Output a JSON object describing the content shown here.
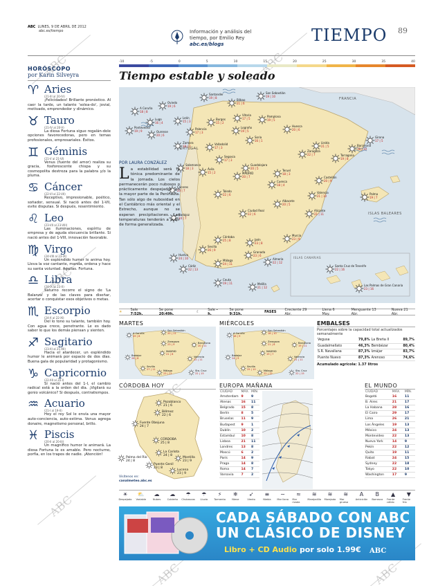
{
  "header": {
    "paper": "ABC",
    "date": "LUNES, 9 DE ABRIL DE 2012",
    "site": "abc.es/tiempo",
    "info_line1": "Información y análisis del",
    "info_line2": "tiempo, por Emilio Rey",
    "blog": "abc.es/blogs",
    "section": "TIEMPO",
    "page": "89"
  },
  "watermark": "ABC",
  "horoscope": {
    "title": "HORÓSCOPO",
    "author": "por Karin Silveyra",
    "signs": [
      {
        "name": "Aries",
        "symbol": "♈",
        "dates": "(21-III al 20-IV)",
        "text": "¡Felicidades! Brillante pronóstico. Al caer la tarde, un talante 'solea-do', jovial, motivado, emprendedor y dinámico."
      },
      {
        "name": "Tauro",
        "symbol": "♉",
        "dates": "(21-IV al 20-V)",
        "text": "La diosa Fortuna sigue regalán-dole opciones favorecedoras, pero en temas profesionales, empresariales. Éxitos."
      },
      {
        "name": "Géminis",
        "symbol": "♊",
        "dates": "(21-V al 21-VI)",
        "text": "Venus (fuente del amor) realiza su gracia, fosforescente chispa y su cosmopolita destreza para la palabra y/o la pluma."
      },
      {
        "name": "Cáncer",
        "symbol": "♋",
        "dates": "(22-VI al 22-VII)",
        "text": "Receptivo, impresionable, poético, soñador, sensual. Si nació antes del 1-VII, evite disputas. Si después, resentimiento."
      },
      {
        "name": "Leo",
        "symbol": "♌",
        "dates": "(23-VII al 23-VIII)",
        "text": "Las iluminaciones, espíritu de empresa y de aguda elocuencia brillante. Si nació antes del 1-VIII, innovación favorable."
      },
      {
        "name": "Virgo",
        "symbol": "♍",
        "dates": "(24-VIII al 23-IX)",
        "text": "Un espléndido humor le anima hoy. Lleva la voz cantante, manda, ordena y hace su santa voluntad. Agallas. Fortuna."
      },
      {
        "name": "Libra",
        "symbol": "♎",
        "dates": "(24-IX al 23-X)",
        "text": "Saturno recorre el signo de 'La Balanza' y de las claves para diseñar, acertar o conquistar esos objetivos o metas."
      },
      {
        "name": "Escorpio",
        "symbol": "♏",
        "dates": "(24-X al 22-XI)",
        "text": "Del lo tono su talante, también hoy. Con agua crece, penetrante. Le es dado saber lo que los demás piensan y sienten."
      },
      {
        "name": "Sagitario",
        "symbol": "♐",
        "dates": "(23-XI al 21-XII)",
        "text": "Hacia el atardecer, un espléndido humor le animará por espacio de dos días. Buena gala de popularidad y protagonismo."
      },
      {
        "name": "Capricornio",
        "symbol": "♑",
        "dates": "(22-XII al 20-I)",
        "text": "Si nació antes del 1-I, el cambio radical está a la orden del día. ¡Vigilará su genio volcánico? Si después, contratiempos."
      },
      {
        "name": "Acuario",
        "symbol": "♒",
        "dates": "(21-I al 19-II)",
        "text": "Hoy el rey Sol le envía una mayor auto-conciencia, auto-estima. Venus agrega donaire, magnetismo personal, brillo."
      },
      {
        "name": "Piscis",
        "symbol": "♓",
        "dates": "(20-II al 20-III)",
        "text": "Un magnífico humor le animará. La diosa Fortuna le es amable. Pero nocturno, porfía, en los trapos de nadie. ¡Atención!"
      }
    ]
  },
  "scale": {
    "ticks": [
      "-10",
      "-5",
      "0",
      "5",
      "10",
      "15",
      "20",
      "25",
      "30",
      "35",
      "40"
    ],
    "colors": [
      "#3b4aa0",
      "#3f68b8",
      "#5b93cf",
      "#86b8de",
      "#b8d8eb",
      "#e9e9c6",
      "#f4d88a",
      "#f0b448",
      "#e6862c",
      "#d55a22"
    ]
  },
  "main": {
    "title": "Tiempo estable y soleado",
    "byline": "POR LAURA CONZÁLEZ",
    "drop_cap": "L",
    "text": "a estabilidad será la tónica predominante de la jornada. Los cielos permanecerán poco nubosos o prácticamente despejados en la mayor parte de la Península. Tan sólo algo de nubosidad en el Cantábrico más oriental y el Estrecho, aunque no se esperan precipitaciones. Las temperaturas tenderán a subir de forma generalizada."
  },
  "map": {
    "labels": {
      "france": "FRANCIA",
      "portugal": "PORTUGAL",
      "baleares": "ISLAS BALEARES",
      "canarias": "ISLAS CANARIAS"
    },
    "cities": [
      {
        "name": "A Coruña",
        "t": "18 | 8"
      },
      {
        "name": "Oviedo",
        "t": "19 | 6"
      },
      {
        "name": "Santander",
        "t": "19 | 8"
      },
      {
        "name": "Bilbao",
        "t": "21 | 6"
      },
      {
        "name": "San Sebastián",
        "t": "19 | 10"
      },
      {
        "name": "Lugo",
        "t": "16 | 4"
      },
      {
        "name": "León",
        "t": "15 | 3"
      },
      {
        "name": "Burgos",
        "t": "15 | 2"
      },
      {
        "name": "Vitoria",
        "t": "17 | 5"
      },
      {
        "name": "Pamplona",
        "t": "19 | 5"
      },
      {
        "name": "Huesca",
        "t": "20 | 6"
      },
      {
        "name": "Girona",
        "t": "17 | 5"
      },
      {
        "name": "Barcelona",
        "t": "18 | 10"
      },
      {
        "name": "Lleida",
        "t": "21 | 5"
      },
      {
        "name": "Zaragoza",
        "t": "22 | 7"
      },
      {
        "name": "Tarragona",
        "t": "19 | 8"
      },
      {
        "name": "Pontevedra",
        "t": "19 | 9"
      },
      {
        "name": "Ourense",
        "t": "20 | 6"
      },
      {
        "name": "Palencia",
        "t": "17 | 3"
      },
      {
        "name": "Logroño",
        "t": "19 | 5"
      },
      {
        "name": "Soria",
        "t": "16 | 1"
      },
      {
        "name": "Valladolid",
        "t": "17 | 3"
      },
      {
        "name": "Zamora",
        "t": "18 | 3"
      },
      {
        "name": "Salamanca",
        "t": "18 | 3"
      },
      {
        "name": "Segovia",
        "t": "17 | 3"
      },
      {
        "name": "Guadalajara",
        "t": "20 | 5"
      },
      {
        "name": "Teruel",
        "t": "18 | 3"
      },
      {
        "name": "Castellón",
        "t": "20 | 9"
      },
      {
        "name": "Ávila",
        "t": "15 | 2"
      },
      {
        "name": "MADRID",
        "t": "20 | 7"
      },
      {
        "name": "Cuenca",
        "t": "18 | 4"
      },
      {
        "name": "Valencia",
        "t": "21 | 10"
      },
      {
        "name": "Palma",
        "t": "19 | 7"
      },
      {
        "name": "Cáceres",
        "t": "23 | 7"
      },
      {
        "name": "Toledo",
        "t": "22 | 6"
      },
      {
        "name": "Albacete",
        "t": "20 | 5"
      },
      {
        "name": "Alicante",
        "t": "21 | 11"
      },
      {
        "name": "Badajoz",
        "t": "24 | 7"
      },
      {
        "name": "Ciudad Real",
        "t": "22 | 6"
      },
      {
        "name": "Murcia",
        "t": "23 | 9"
      },
      {
        "name": "Córdoba",
        "t": "25 | 8"
      },
      {
        "name": "Jaén",
        "t": "23 | 8"
      },
      {
        "name": "Granada",
        "t": "23 | 6"
      },
      {
        "name": "Sevilla",
        "t": "26 | 9"
      },
      {
        "name": "Almería",
        "t": "22 | 12"
      },
      {
        "name": "Huelva",
        "t": "24 | 10"
      },
      {
        "name": "Cádiz",
        "t": "22 | 13"
      },
      {
        "name": "Málaga",
        "t": "24 | 11"
      },
      {
        "name": "Ceuta",
        "t": "19 | 11"
      },
      {
        "name": "Melilla",
        "t": "21 | 12"
      },
      {
        "name": "Santa Cruz de Tenerife",
        "t": "22 | 16"
      },
      {
        "name": "Las Palmas de Gran Canaria",
        "t": "23 | 16"
      }
    ]
  },
  "strip": {
    "sale_label": "Sale",
    "sale": "7:52h.",
    "se_pone_label": "Se pone",
    "se_pone": "20:49h.",
    "sale2_label": "Sale",
    "sale2": "-h.",
    "se_pone2_label": "Se pone",
    "se_pone2": "9:31h.",
    "fases_label": "FASES",
    "creciente": "Creciente",
    "creciente_d": "29 Abr.",
    "llena": "Llena",
    "llena_d": "6 May.",
    "menguante": "Menguante",
    "menguante_d": "13 Abr.",
    "nueva": "Nueva",
    "nueva_d": "21 Abr."
  },
  "forecast": {
    "martes": {
      "title": "MARTES",
      "cities": [
        {
          "name": "A Coruña",
          "t": "19 | 8"
        },
        {
          "name": "San Sebastián",
          "t": "20 | 11"
        },
        {
          "name": "Zaragoza",
          "t": "23 | 9"
        },
        {
          "name": "Barcelona",
          "t": "20 | 11"
        },
        {
          "name": "MADRID",
          "t": "21 | 8"
        },
        {
          "name": "Badajoz",
          "t": "26 | 8"
        },
        {
          "name": "Valencia",
          "t": "22 | 11"
        },
        {
          "name": "Sevilla",
          "t": "27 | 11"
        },
        {
          "name": "Málaga",
          "t": "23 | 11"
        },
        {
          "name": "Sta. Cruz",
          "t": "22 | 15"
        }
      ]
    },
    "miercoles": {
      "title": "MIÉRCOLES",
      "cities": [
        {
          "name": "A Coruña",
          "t": "18 | 9"
        },
        {
          "name": "San Sebastián",
          "t": "18 | 10"
        },
        {
          "name": "Zaragoza",
          "t": "21 | 8"
        },
        {
          "name": "Barcelona",
          "t": "19 | 11"
        },
        {
          "name": "MADRID",
          "t": "19 | 7"
        },
        {
          "name": "Badajoz",
          "t": "24 | 9"
        },
        {
          "name": "Valencia",
          "t": "21 | 11"
        },
        {
          "name": "Sevilla",
          "t": "25 | 10"
        },
        {
          "name": "Málaga",
          "t": "22 | 12"
        },
        {
          "name": "Sta. Cruz",
          "t": "22 | 15"
        }
      ]
    }
  },
  "embalses": {
    "title": "EMBALSES",
    "subtitle": "Porcentajes sobre la capacidad total actualizados semanalmente",
    "rows": [
      {
        "a": "Vegusa",
        "av": "79,8%",
        "b": "La Breña II",
        "bv": "89,7%"
      },
      {
        "a": "Guadalmellato",
        "av": "46,3%",
        "b": "Bembézar",
        "bv": "80,4%"
      },
      {
        "a": "S.R. Navallana",
        "av": "87,3%",
        "b": "Iznájar",
        "bv": "83,7%"
      },
      {
        "a": "Puente Nuevo",
        "av": "87,3%",
        "b": "Arenoso",
        "bv": "74,6%"
      }
    ],
    "accumulated": "Acumulado agrícola: 1.37 litros"
  },
  "cordoba": {
    "title": "CÓRDOBA HOY",
    "places": [
      {
        "name": "Pozoblanco",
        "t": "21 | 6"
      },
      {
        "name": "Bélmez",
        "t": "22 | 6"
      },
      {
        "name": "Fuente Obejuna",
        "t": "24 | 7"
      },
      {
        "name": "CÓRDOBA",
        "t": "25 | 8"
      },
      {
        "name": "La Carlota",
        "t": "24 | 8"
      },
      {
        "name": "Montilla",
        "t": "23 | 9"
      },
      {
        "name": "Palma del Río",
        "t": "24 | 8"
      },
      {
        "name": "Puente Genil",
        "t": "23 | 8"
      },
      {
        "name": "Lucena",
        "t": "23 | 9"
      }
    ],
    "visit": "Visítenos en:",
    "web": "canalmeteo.abc.es"
  },
  "europa": {
    "title": "EUROPA MAÑANA",
    "headers": [
      "CIUDAD",
      "MÁX.",
      "MÍN."
    ],
    "rows": [
      [
        "Amsterdam",
        "9",
        "9"
      ],
      [
        "Atenas",
        "16",
        "11"
      ],
      [
        "Belgrado",
        "15",
        "8"
      ],
      [
        "Berlín",
        "8",
        "5"
      ],
      [
        "Bruselas",
        "11",
        "9"
      ],
      [
        "Budapest",
        "9",
        "1"
      ],
      [
        "Dublín",
        "10",
        "2"
      ],
      [
        "Estambul",
        "10",
        "8"
      ],
      [
        "Lisboa",
        "21",
        "11"
      ],
      [
        "Londres",
        "13",
        "8"
      ],
      [
        "Moscú",
        "6",
        "2"
      ],
      [
        "París",
        "14",
        "9"
      ],
      [
        "Praga",
        "14",
        "8"
      ],
      [
        "Roma",
        "14",
        "7"
      ],
      [
        "Varsovia",
        "7",
        "2"
      ]
    ]
  },
  "mundo": {
    "title": "EL MUNDO",
    "headers": [
      "CIUDAD",
      "MÁX.",
      "MÍN."
    ],
    "rows": [
      [
        "Bogotá",
        "16",
        "11"
      ],
      [
        "B. Aires",
        "21",
        "17"
      ],
      [
        "La Habana",
        "28",
        "16"
      ],
      [
        "El Cairo",
        "29",
        "17"
      ],
      [
        "Lima",
        "26",
        "21"
      ],
      [
        "Los Ángeles",
        "19",
        "13"
      ],
      [
        "México",
        "24",
        "13"
      ],
      [
        "Montevideo",
        "22",
        "13"
      ],
      [
        "Nueva York",
        "14",
        "9"
      ],
      [
        "Pekín",
        "22",
        "12"
      ],
      [
        "Quito",
        "19",
        "11"
      ],
      [
        "Rabat",
        "24",
        "15"
      ],
      [
        "Sydney",
        "22",
        "18"
      ],
      [
        "Tokyo",
        "22",
        "10"
      ],
      [
        "Washington",
        "17",
        "9"
      ]
    ]
  },
  "legend": [
    "Despejado",
    "Variable",
    "Nubes",
    "Cubierto",
    "Chubascos",
    "Lluvia",
    "Tormenta",
    "Nieve",
    "Viento",
    "Niebla",
    "Mar llana",
    "Mar rizada",
    "Marejadilla",
    "Marejada",
    "Mar gruesa",
    "Anticiclón",
    "Borrasca",
    "Frente cálido",
    "Frente frío"
  ],
  "legend_icons": [
    "☀",
    "⛅",
    "☁",
    "☁",
    "☂",
    "☂",
    "⚡",
    "❄",
    "➶",
    "≡",
    "∼",
    "≈",
    "≋",
    "≋",
    "≋",
    "A",
    "B",
    "▲",
    "▼"
  ],
  "ad": {
    "line1": "CADA SÁBADO CON ABC",
    "line2": "UN CLÁSICO DE DISNEY",
    "offer": "Libro + CD Audio",
    "price": "por solo 1.99€",
    "brand": "ABC"
  }
}
